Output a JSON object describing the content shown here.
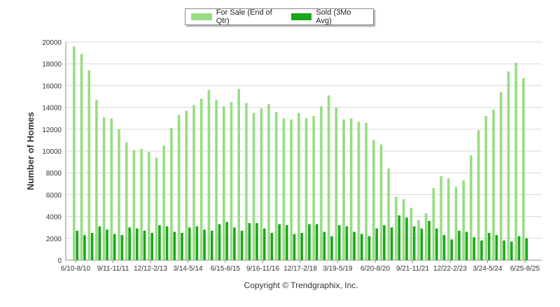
{
  "chart_data": {
    "type": "bar",
    "ylabel": "Number of Homes",
    "ylim": [
      0,
      20000
    ],
    "yticks": [
      0,
      2000,
      4000,
      6000,
      8000,
      10000,
      12000,
      14000,
      16000,
      18000,
      20000
    ],
    "grid": true,
    "legend_position": "top-center",
    "x_tick_labels": [
      "6/10-8/10",
      "9/11-11/11",
      "12/12-2/13",
      "3/14-5/14",
      "6/15-8/15",
      "9/16-11/16",
      "12/17-2/18",
      "3/19-5/19",
      "6/20-8/20",
      "9/21-11/21",
      "12/22-2/23",
      "3/24-5/24",
      "6/25-8/25"
    ],
    "series": [
      {
        "name": "For Sale (End of Qtr)",
        "color": "#98dc83",
        "values": [
          19600,
          18900,
          17400,
          14700,
          13100,
          13000,
          12000,
          10800,
          10100,
          10200,
          9900,
          9400,
          10500,
          12100,
          13300,
          13700,
          14200,
          14800,
          15600,
          14700,
          14100,
          14500,
          15700,
          14400,
          13500,
          13900,
          14300,
          13600,
          13000,
          12900,
          13500,
          13000,
          13200,
          14100,
          15100,
          14000,
          12900,
          13000,
          12700,
          12600,
          11000,
          10600,
          8400,
          5800,
          5600,
          4800,
          3700,
          4300,
          6600,
          7700,
          7500,
          6700,
          7300,
          9600,
          11900,
          13200,
          13800,
          15400,
          17300,
          18100,
          16700
        ]
      },
      {
        "name": "Sold (3Mo Avg)",
        "color": "#1aa71a",
        "values": [
          2700,
          2300,
          2500,
          3100,
          2800,
          2400,
          2300,
          3000,
          2900,
          2700,
          2500,
          3200,
          3100,
          2600,
          2500,
          3000,
          3100,
          2800,
          2700,
          3300,
          3500,
          3000,
          2700,
          3400,
          3400,
          2900,
          2500,
          3300,
          3200,
          2400,
          2500,
          3300,
          3300,
          2600,
          2200,
          3200,
          3100,
          2600,
          2400,
          2200,
          2900,
          3200,
          3000,
          4100,
          3900,
          3100,
          2900,
          3600,
          2900,
          2300,
          1900,
          2700,
          2600,
          2100,
          1800,
          2500,
          2300,
          1800,
          1700,
          2200,
          2000
        ]
      }
    ]
  },
  "copyright": "Copyright © Trendgraphix, Inc."
}
